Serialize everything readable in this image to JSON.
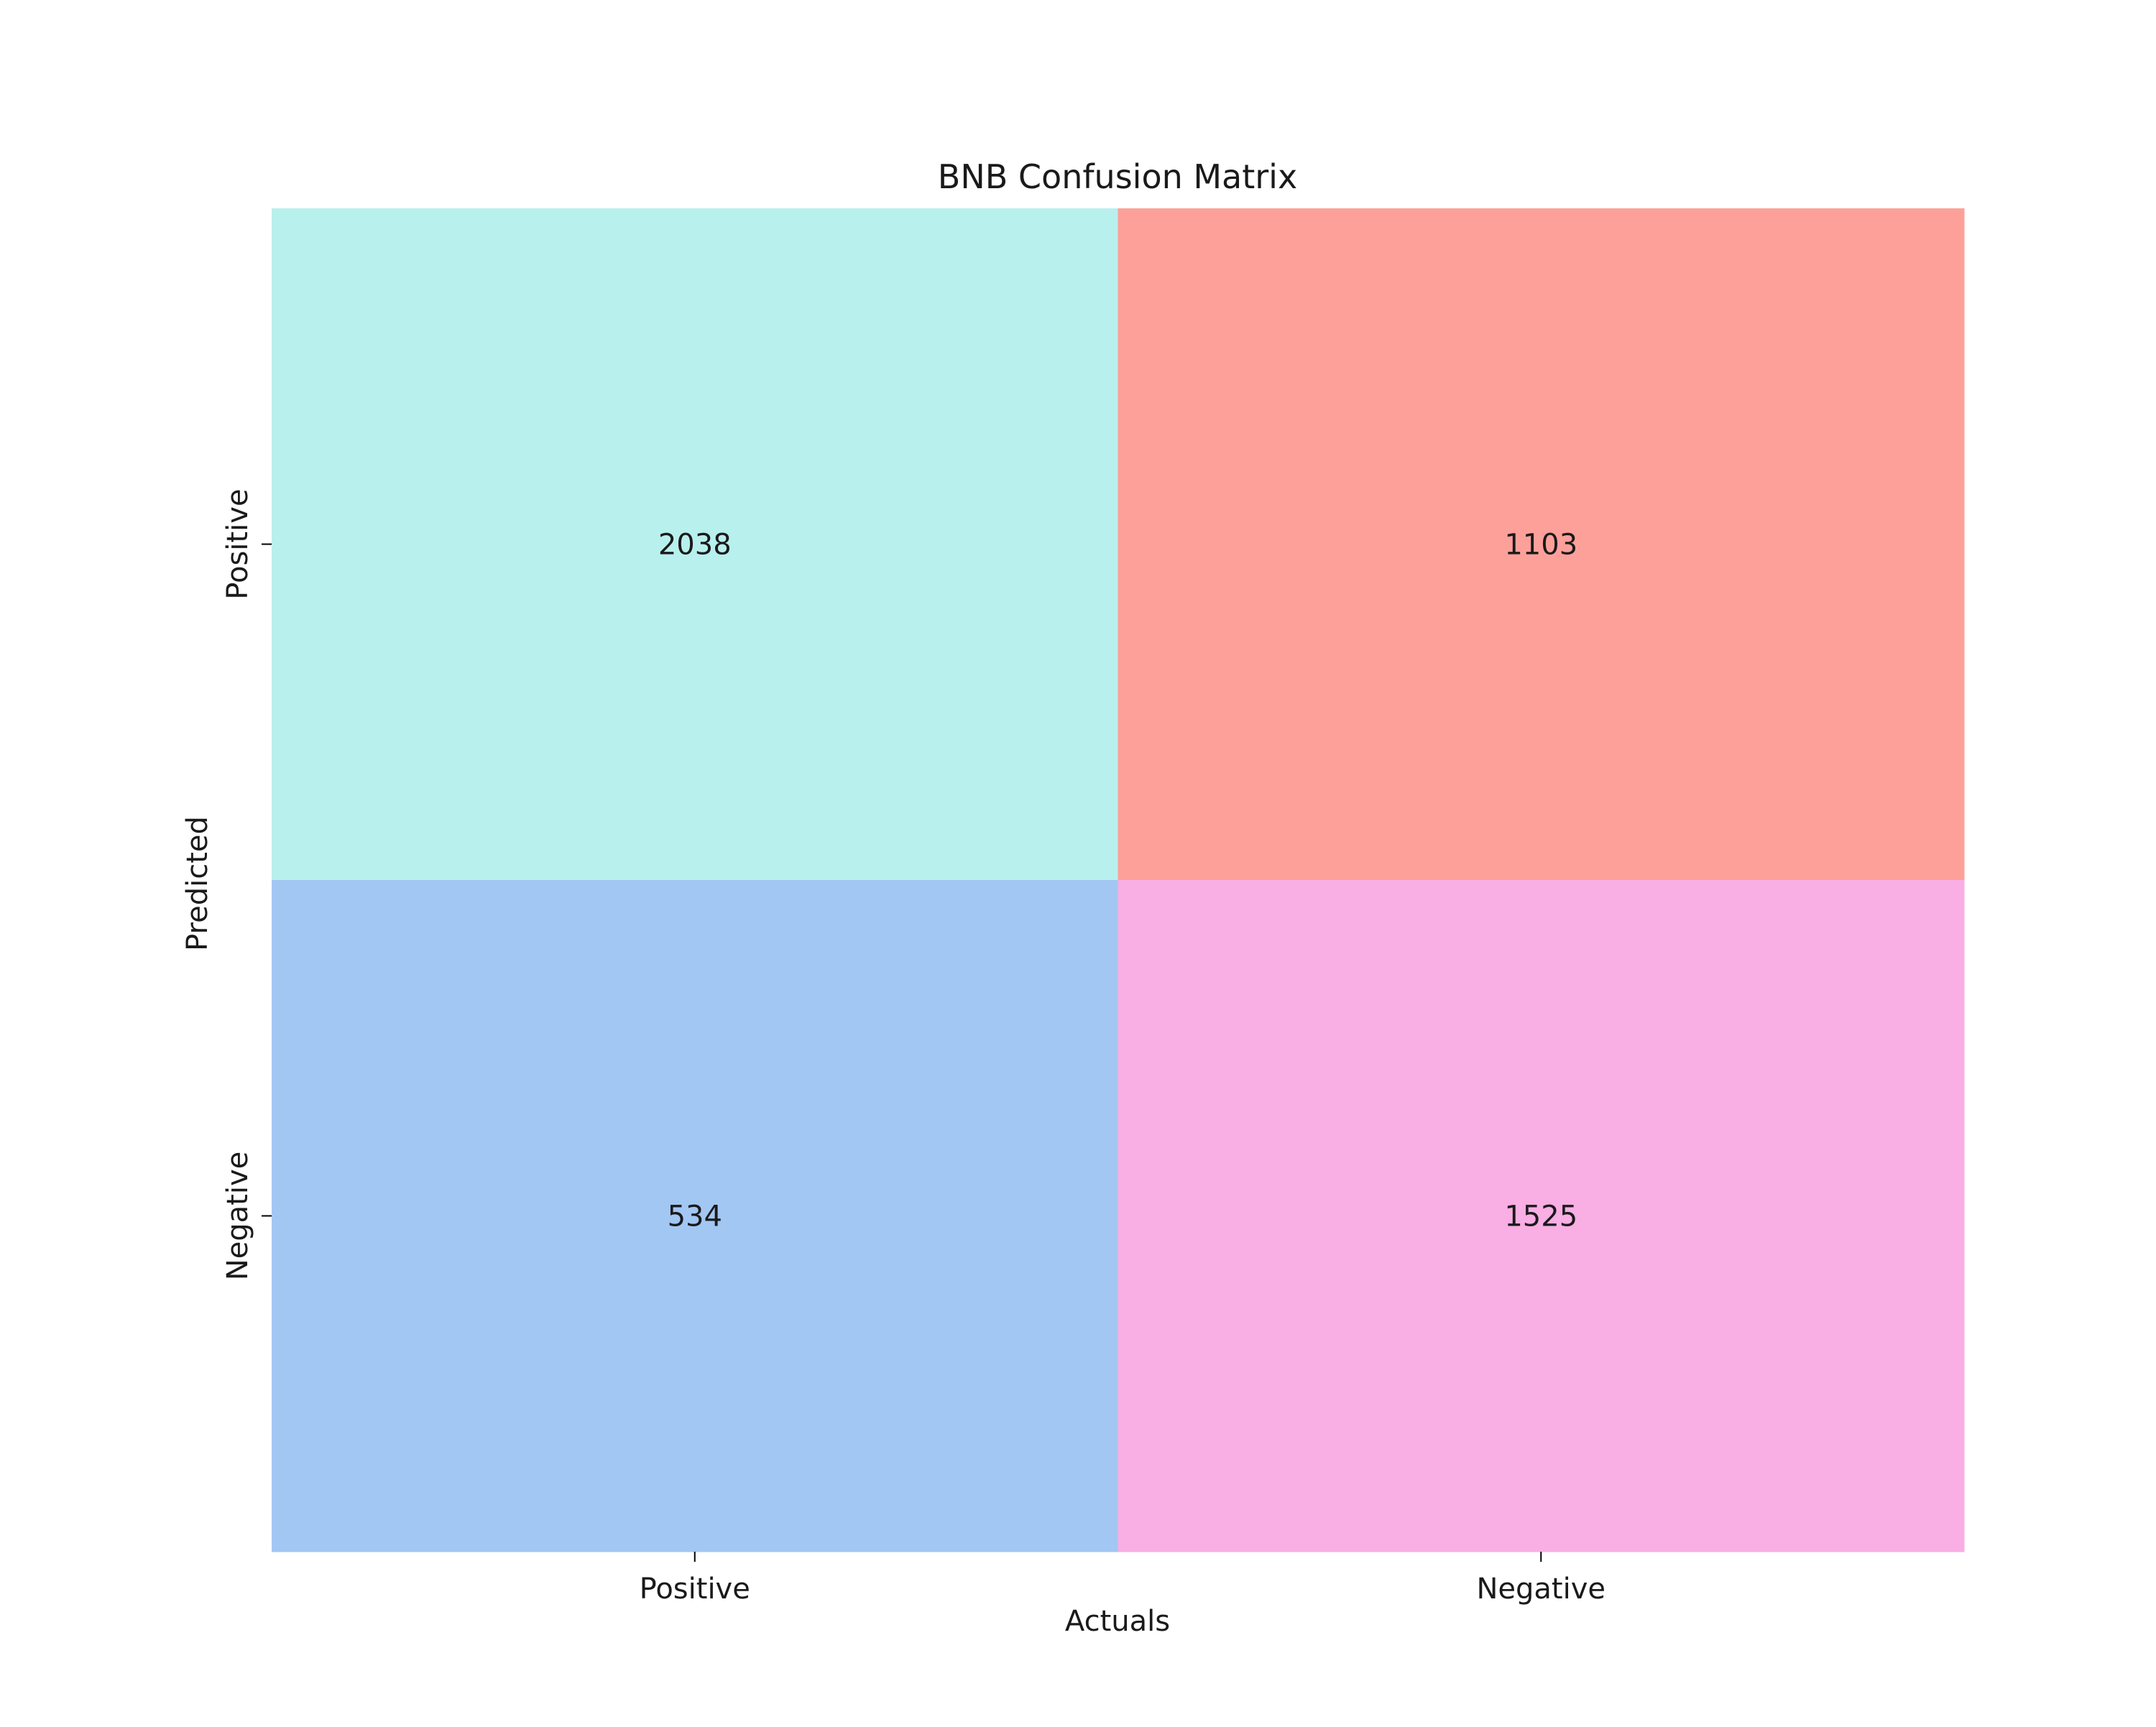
{
  "chart_data": {
    "type": "heatmap",
    "title": "BNB Confusion Matrix",
    "xlabel": "Actuals",
    "ylabel": "Predicted",
    "x_categories": [
      "Positive",
      "Negative"
    ],
    "y_categories": [
      "Positive",
      "Negative"
    ],
    "cells": [
      {
        "row": 0,
        "col": 0,
        "value": 2038,
        "color": "#b8f0ee"
      },
      {
        "row": 0,
        "col": 1,
        "value": 1103,
        "color": "#fea09a"
      },
      {
        "row": 1,
        "col": 0,
        "value": 534,
        "color": "#a2c7f3"
      },
      {
        "row": 1,
        "col": 1,
        "value": 1525,
        "color": "#f9aee4"
      }
    ],
    "grid": false,
    "colorbar": false
  }
}
